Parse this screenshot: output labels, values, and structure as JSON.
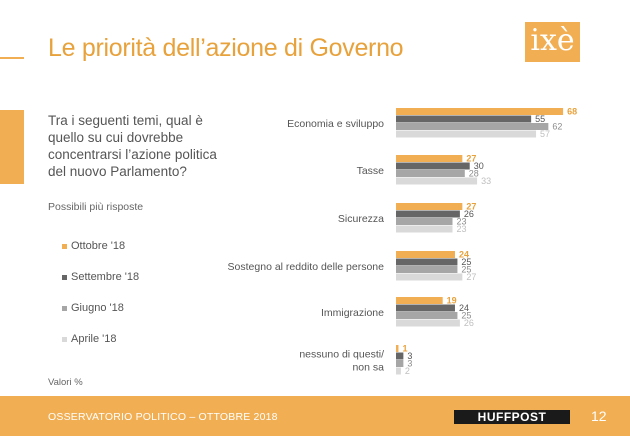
{
  "header": {
    "title": "Le priorità dell’azione di Governo",
    "logo_text": "ixè"
  },
  "question": "Tra i seguenti temi, qual è quello su cui dovrebbe concentrarsi l’azione politica del nuovo Parlamento?",
  "note": "Possibili più risposte",
  "unit_note": "Valori %",
  "footer": {
    "left_text": "OSSERVATORIO POLITICO – OTTOBRE 2018",
    "brand": "HUFFPOST",
    "page_number": "12"
  },
  "chart_data": {
    "type": "bar",
    "orientation": "horizontal",
    "categories": [
      "Economia e sviluppo",
      "Tasse",
      "Sicurezza",
      "Sostegno al reddito delle persone",
      "Immigrazione",
      "nessuno di questi/\nnon sa"
    ],
    "series": [
      {
        "name": "Ottobre '18",
        "color": "#F2AE52",
        "values": [
          68,
          27,
          27,
          24,
          19,
          1
        ]
      },
      {
        "name": "Settembre '18",
        "color": "#666666",
        "values": [
          55,
          30,
          26,
          25,
          24,
          3
        ]
      },
      {
        "name": "Giugno '18",
        "color": "#A6A6A6",
        "values": [
          62,
          28,
          23,
          25,
          25,
          3
        ]
      },
      {
        "name": "Aprile '18",
        "color": "#D9D9D9",
        "values": [
          57,
          33,
          23,
          27,
          26,
          2
        ]
      }
    ],
    "value_label_colors": [
      "#E8A23C",
      "#555555",
      "#8C8C8C",
      "#BFBFBF"
    ],
    "xlim": [
      0,
      70
    ],
    "legend_position": "left",
    "grid": false
  }
}
